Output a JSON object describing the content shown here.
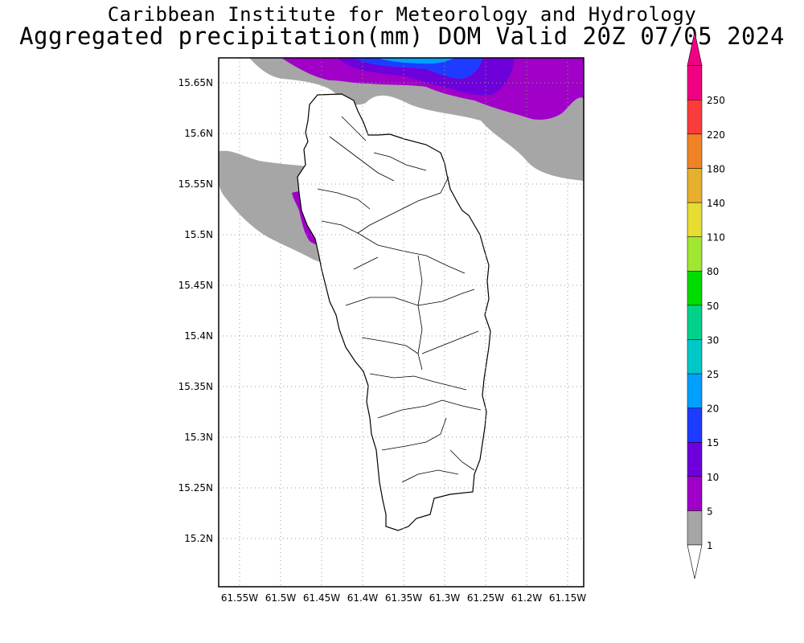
{
  "title": {
    "line1": "Caribbean Institute for Meteorology and Hydrology",
    "line2": "Aggregated precipitation(mm) DOM Valid 20Z 07/05 2024"
  },
  "map": {
    "lon_ticks": [
      "61.55W",
      "61.5W",
      "61.45W",
      "61.4W",
      "61.35W",
      "61.3W",
      "61.25W",
      "61.2W",
      "61.15W"
    ],
    "lat_ticks": [
      "15.65N",
      "15.6N",
      "15.55N",
      "15.5N",
      "15.45N",
      "15.4N",
      "15.35N",
      "15.3N",
      "15.25N",
      "15.2N"
    ]
  },
  "colorbar": {
    "labels": [
      "1",
      "5",
      "10",
      "15",
      "20",
      "25",
      "30",
      "50",
      "80",
      "110",
      "140",
      "180",
      "220",
      "250"
    ],
    "colors": [
      "#a6a6a6",
      "#a000c8",
      "#6e00dc",
      "#1e3cff",
      "#00a0ff",
      "#00c8c8",
      "#00d28c",
      "#00dc00",
      "#a0e632",
      "#e6dc32",
      "#e6af2d",
      "#f08228",
      "#fa3c3c",
      "#f00082"
    ],
    "under_color": "#ffffff"
  },
  "colors": {
    "gray_area": "#a6a6a6",
    "purple_5_10": "#a000c8",
    "purple_10_15": "#6e00dc",
    "blue_15_20": "#1e3cff",
    "blue_20_25": "#00a0ff"
  }
}
